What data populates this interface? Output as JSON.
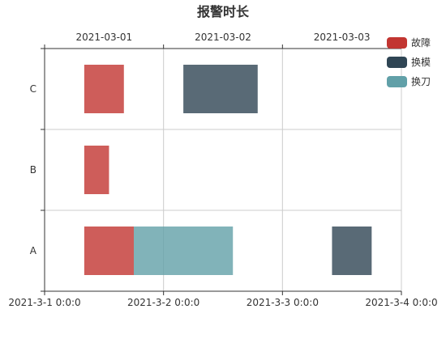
{
  "chart_data": {
    "type": "bar",
    "subtype": "gantt",
    "title": "报警时长",
    "categories": [
      "A",
      "B",
      "C"
    ],
    "x_range": [
      "2021-3-1 0:0:0",
      "2021-3-4 0:0:0"
    ],
    "bottom_ticks": [
      "2021-3-1 0:0:0",
      "2021-3-2 0:0:0",
      "2021-3-3 0:0:0",
      "2021-3-4 0:0:0"
    ],
    "top_ticks": [
      "2021-03-01",
      "2021-03-02",
      "2021-03-03"
    ],
    "legend_position": "top-right",
    "grid": true,
    "series": [
      {
        "name": "故障",
        "color": "#c23531",
        "items": [
          {
            "category": "C",
            "start": "2021-03-01 08:00",
            "end": "2021-03-01 16:00"
          },
          {
            "category": "B",
            "start": "2021-03-01 08:00",
            "end": "2021-03-01 13:00"
          },
          {
            "category": "A",
            "start": "2021-03-01 08:00",
            "end": "2021-03-01 18:00"
          }
        ]
      },
      {
        "name": "换模",
        "color": "#2f4554",
        "items": [
          {
            "category": "C",
            "start": "2021-03-02 04:00",
            "end": "2021-03-02 19:00"
          },
          {
            "category": "A",
            "start": "2021-03-03 10:00",
            "end": "2021-03-03 18:00"
          }
        ]
      },
      {
        "name": "换刀",
        "color": "#61a0a8",
        "items": [
          {
            "category": "A",
            "start": "2021-03-01 18:00",
            "end": "2021-03-02 14:00"
          }
        ]
      }
    ]
  }
}
